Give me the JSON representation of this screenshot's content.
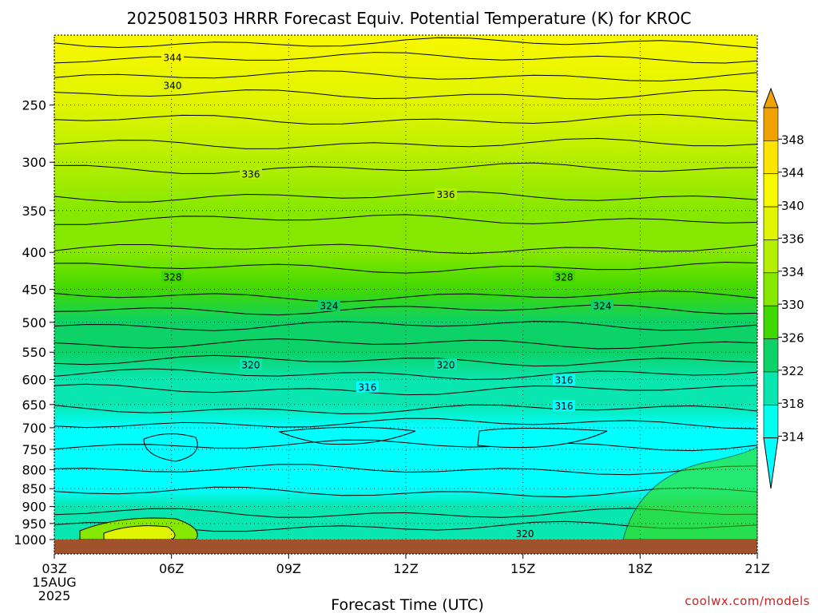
{
  "chart_data": {
    "type": "heatmap",
    "title": "2025081503 HRRR Forecast Equiv. Potential Temperature (K) for KROC",
    "xlabel": "Forecast Time (UTC)",
    "ylabel": "",
    "x_ticks": [
      "03Z",
      "06Z",
      "09Z",
      "12Z",
      "15Z",
      "18Z",
      "21Z"
    ],
    "x_start_date": [
      "15AUG",
      "2025"
    ],
    "y_ticks": [
      "250",
      "300",
      "350",
      "400",
      "450",
      "500",
      "550",
      "600",
      "650",
      "700",
      "750",
      "800",
      "850",
      "900",
      "950",
      "1000"
    ],
    "ylim": [
      1000,
      200
    ],
    "colorbar": {
      "labels": [
        "348",
        "344",
        "340",
        "336",
        "334",
        "330",
        "326",
        "322",
        "318",
        "314"
      ],
      "colors": [
        "#f0a200",
        "#ffe400",
        "#f8f800",
        "#e0f400",
        "#b4ee00",
        "#86e800",
        "#40d800",
        "#0cd268",
        "#0ae6b0",
        "#00ffee",
        "#00ffff"
      ]
    },
    "contour_labels": [
      "344",
      "340",
      "336",
      "336",
      "328",
      "328",
      "324",
      "324",
      "320",
      "320",
      "316",
      "316",
      "316",
      "320"
    ],
    "levels_sfc_to_top": [
      {
        "p": 1000,
        "theta_e": 320
      },
      {
        "p": 950,
        "theta_e": 322
      },
      {
        "p": 900,
        "theta_e": 320
      },
      {
        "p": 850,
        "theta_e": 318
      },
      {
        "p": 800,
        "theta_e": 318
      },
      {
        "p": 750,
        "theta_e": 316
      },
      {
        "p": 700,
        "theta_e": 317
      },
      {
        "p": 650,
        "theta_e": 320
      },
      {
        "p": 600,
        "theta_e": 322
      },
      {
        "p": 550,
        "theta_e": 323
      },
      {
        "p": 500,
        "theta_e": 325
      },
      {
        "p": 450,
        "theta_e": 328
      },
      {
        "p": 400,
        "theta_e": 331
      },
      {
        "p": 350,
        "theta_e": 333
      },
      {
        "p": 300,
        "theta_e": 335
      },
      {
        "p": 250,
        "theta_e": 338
      },
      {
        "p": 200,
        "theta_e": 344
      }
    ],
    "grid": true
  },
  "credit": "coolwx.com/models",
  "colors": {
    "ground": "#a0522d",
    "credit": "#cc2222",
    "contour": "#000000"
  }
}
